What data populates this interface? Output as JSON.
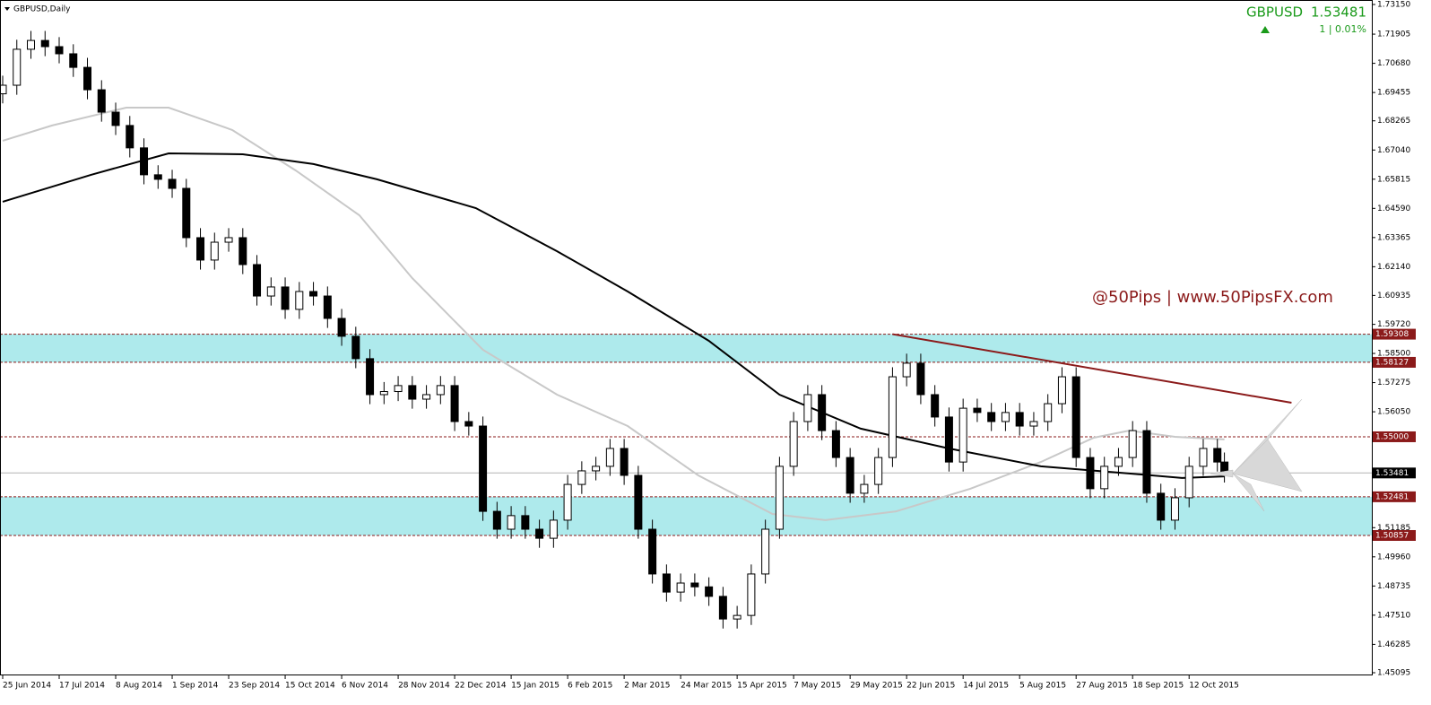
{
  "chart_data": {
    "type": "candlestick",
    "symbol_title": "GBPUSD,Daily",
    "quote_symbol": "GBPUSD",
    "quote_price": 1.53481,
    "quote_change": "1 | 0.01%",
    "watermark": "@50Pips | www.50PipsFX.com",
    "bull_color": "#ffffff",
    "bear_color": "#000000",
    "x": [
      0,
      4,
      8,
      12,
      16,
      20,
      24,
      28,
      32,
      36,
      40,
      44,
      48,
      52,
      56,
      60,
      64,
      68,
      72,
      76,
      80,
      84,
      88,
      92,
      96,
      100,
      104,
      108,
      112,
      116,
      120,
      124,
      128,
      132,
      136,
      140,
      144,
      148,
      152,
      156,
      160,
      164,
      168,
      172,
      176,
      180,
      184,
      188,
      192,
      196,
      200,
      204,
      208,
      212,
      216,
      220,
      224,
      228,
      232,
      236,
      240,
      244,
      248,
      252,
      256,
      260,
      264,
      268,
      272,
      276,
      280,
      284,
      288,
      292,
      296,
      300,
      304,
      308,
      312,
      316,
      320,
      324,
      328,
      332,
      336,
      340,
      344,
      346
    ],
    "open": [
      1.694,
      1.6976,
      1.7127,
      1.7164,
      1.7138,
      1.7108,
      1.7051,
      1.6957,
      1.6863,
      1.6807,
      1.6713,
      1.66,
      1.6581,
      1.6543,
      1.6336,
      1.6242,
      1.6317,
      1.6336,
      1.6223,
      1.6091,
      1.6129,
      1.6035,
      1.611,
      1.6091,
      1.5997,
      1.5922,
      1.5828,
      1.5677,
      1.569,
      1.5715,
      1.5658,
      1.5677,
      1.5715,
      1.5564,
      1.5545,
      1.5187,
      1.5112,
      1.5169,
      1.5112,
      1.5074,
      1.515,
      1.53,
      1.5357,
      1.5376,
      1.5451,
      1.5338,
      1.5112,
      1.4924,
      1.4848,
      1.4886,
      1.487,
      1.483,
      1.4735,
      1.475,
      1.4924,
      1.5112,
      1.5376,
      1.5564,
      1.5677,
      1.5526,
      1.5413,
      1.5263,
      1.53,
      1.5413,
      1.5752,
      1.5809,
      1.5677,
      1.5583,
      1.5394,
      1.562,
      1.5602,
      1.5564,
      1.5602,
      1.5545,
      1.5564,
      1.5639,
      1.5752,
      1.5413,
      1.5282,
      1.5376,
      1.5413,
      1.5526,
      1.5263,
      1.515,
      1.5244,
      1.5376,
      1.5451,
      1.5394
    ],
    "high": [
      1.7016,
      1.7167,
      1.7204,
      1.7204,
      1.7178,
      1.7148,
      1.7091,
      1.6997,
      1.6903,
      1.6847,
      1.6753,
      1.664,
      1.6621,
      1.6583,
      1.6376,
      1.6357,
      1.6376,
      1.6376,
      1.6263,
      1.6169,
      1.6169,
      1.615,
      1.615,
      1.6131,
      1.6037,
      1.5962,
      1.5868,
      1.573,
      1.5755,
      1.5755,
      1.5717,
      1.5755,
      1.5755,
      1.5604,
      1.5585,
      1.5227,
      1.5209,
      1.5209,
      1.5152,
      1.519,
      1.534,
      1.5397,
      1.5416,
      1.5491,
      1.5491,
      1.5378,
      1.5152,
      1.4964,
      1.4926,
      1.4926,
      1.491,
      1.487,
      1.479,
      1.4964,
      1.5152,
      1.5416,
      1.5604,
      1.5717,
      1.5717,
      1.5566,
      1.5453,
      1.534,
      1.5453,
      1.5792,
      1.5849,
      1.5849,
      1.5717,
      1.5623,
      1.566,
      1.566,
      1.5642,
      1.5642,
      1.5642,
      1.5604,
      1.5679,
      1.5792,
      1.5792,
      1.5453,
      1.5416,
      1.5453,
      1.5566,
      1.5566,
      1.5303,
      1.5284,
      1.5416,
      1.5491,
      1.5491,
      1.5434
    ],
    "low": [
      1.69,
      1.6936,
      1.7087,
      1.7098,
      1.7068,
      1.7011,
      1.6917,
      1.6823,
      1.6767,
      1.6673,
      1.656,
      1.6541,
      1.6503,
      1.6296,
      1.6202,
      1.6202,
      1.6277,
      1.6183,
      1.6051,
      1.6051,
      1.5995,
      1.5995,
      1.6051,
      1.5957,
      1.5882,
      1.5788,
      1.5637,
      1.5637,
      1.565,
      1.5618,
      1.5618,
      1.5637,
      1.5524,
      1.5505,
      1.5147,
      1.5072,
      1.5072,
      1.5072,
      1.5034,
      1.5034,
      1.511,
      1.526,
      1.5317,
      1.5336,
      1.5298,
      1.5072,
      1.4884,
      1.4808,
      1.4808,
      1.483,
      1.479,
      1.4695,
      1.4695,
      1.471,
      1.4884,
      1.5072,
      1.5336,
      1.5524,
      1.5486,
      1.5373,
      1.5223,
      1.5223,
      1.526,
      1.5373,
      1.5712,
      1.5637,
      1.5543,
      1.5354,
      1.5354,
      1.5562,
      1.5524,
      1.5524,
      1.5505,
      1.5505,
      1.5524,
      1.5599,
      1.5373,
      1.5242,
      1.5242,
      1.5336,
      1.5373,
      1.5223,
      1.511,
      1.511,
      1.5204,
      1.5336,
      1.5354,
      1.5308
    ],
    "close": [
      1.6976,
      1.7127,
      1.7164,
      1.7138,
      1.7108,
      1.7051,
      1.6957,
      1.6863,
      1.6807,
      1.6713,
      1.66,
      1.6581,
      1.6543,
      1.6336,
      1.6242,
      1.6317,
      1.6336,
      1.6223,
      1.6091,
      1.6129,
      1.6035,
      1.611,
      1.6091,
      1.5997,
      1.5922,
      1.5828,
      1.5677,
      1.569,
      1.5715,
      1.5658,
      1.5677,
      1.5715,
      1.5564,
      1.5545,
      1.5187,
      1.5112,
      1.5169,
      1.5112,
      1.5074,
      1.515,
      1.53,
      1.5357,
      1.5376,
      1.5451,
      1.5338,
      1.5112,
      1.4924,
      1.4848,
      1.4886,
      1.487,
      1.483,
      1.4735,
      1.475,
      1.4924,
      1.5112,
      1.5376,
      1.5564,
      1.5677,
      1.5526,
      1.5413,
      1.5263,
      1.53,
      1.5413,
      1.5752,
      1.5809,
      1.5677,
      1.5583,
      1.5394,
      1.562,
      1.5602,
      1.5564,
      1.5602,
      1.5545,
      1.5564,
      1.5639,
      1.5752,
      1.5413,
      1.5282,
      1.5376,
      1.5413,
      1.5526,
      1.5263,
      1.515,
      1.5244,
      1.5376,
      1.5451,
      1.5394,
      1.53481
    ],
    "moving_averages": [
      {
        "color": "#c8c8c8",
        "x": [
          0,
          14,
          35,
          47,
          65,
          83,
          101,
          116,
          136,
          157,
          177,
          197,
          218,
          233,
          253,
          274,
          294,
          309,
          319,
          332,
          346
        ],
        "values": [
          1.6743,
          1.6807,
          1.6882,
          1.6882,
          1.6788,
          1.6618,
          1.643,
          1.6166,
          1.5865,
          1.5677,
          1.5545,
          1.5338,
          1.5176,
          1.515,
          1.5187,
          1.5282,
          1.5394,
          1.5496,
          1.5526,
          1.55,
          1.5489
        ]
      },
      {
        "color": "#000000",
        "x": [
          0,
          25,
          47,
          68,
          88,
          106,
          134,
          157,
          177,
          200,
          220,
          243,
          268,
          294,
          319,
          334,
          346
        ],
        "values": [
          1.6487,
          1.66,
          1.669,
          1.6686,
          1.6645,
          1.6581,
          1.646,
          1.6279,
          1.611,
          1.5903,
          1.5677,
          1.5534,
          1.5451,
          1.5376,
          1.5346,
          1.5327,
          1.5334
        ]
      }
    ],
    "trendline": {
      "color": "#8b1a1a",
      "x": [
        252,
        365
      ],
      "values": [
        1.59308,
        1.5643
      ]
    },
    "zone_color": "#aeeaec",
    "zones": [
      [
        1.58127,
        1.59308
      ],
      [
        1.50857,
        1.52481
      ]
    ],
    "level_color": "#8b1a1a",
    "levels": [
      1.59308,
      1.58127,
      {
        "value": 1.55,
        "label": "1.55000"
      },
      1.52481,
      1.50857
    ],
    "current_price": 1.53481,
    "xlim": [
      0,
      388
    ],
    "ylim": [
      1.45095,
      1.7315
    ],
    "xticks": [
      {
        "value": 0,
        "label": "25 Jun 2014"
      },
      {
        "value": 16,
        "label": "17 Jul 2014"
      },
      {
        "value": 32,
        "label": "8 Aug 2014"
      },
      {
        "value": 48,
        "label": "1 Sep 2014"
      },
      {
        "value": 64,
        "label": "23 Sep 2014"
      },
      {
        "value": 80,
        "label": "15 Oct 2014"
      },
      {
        "value": 96,
        "label": "6 Nov 2014"
      },
      {
        "value": 112,
        "label": "28 Nov 2014"
      },
      {
        "value": 128,
        "label": "22 Dec 2014"
      },
      {
        "value": 144,
        "label": "15 Jan 2015"
      },
      {
        "value": 160,
        "label": "6 Feb 2015"
      },
      {
        "value": 176,
        "label": "2 Mar 2015"
      },
      {
        "value": 192,
        "label": "24 Mar 2015"
      },
      {
        "value": 208,
        "label": "15 Apr 2015"
      },
      {
        "value": 224,
        "label": "7 May 2015"
      },
      {
        "value": 240,
        "label": "29 May 2015"
      },
      {
        "value": 256,
        "label": "22 Jun 2015"
      },
      {
        "value": 272,
        "label": "14 Jul 2015"
      },
      {
        "value": 288,
        "label": "5 Aug 2015"
      },
      {
        "value": 304,
        "label": "27 Aug 2015"
      },
      {
        "value": 320,
        "label": "18 Sep 2015"
      },
      {
        "value": 336,
        "label": "12 Oct 2015"
      }
    ],
    "yticks": [
      {
        "value": 1.7315,
        "label": "1.73150"
      },
      1.71905,
      {
        "value": 1.7068,
        "label": "1.70680"
      },
      1.69455,
      1.68265,
      {
        "value": 1.6704,
        "label": "1.67040"
      },
      1.65815,
      {
        "value": 1.6459,
        "label": "1.64590"
      },
      1.63365,
      {
        "value": 1.6214,
        "label": "1.62140"
      },
      1.60935,
      {
        "value": 1.5972,
        "label": "1.59720"
      },
      {
        "value": 1.585,
        "label": "1.58500"
      },
      1.57275,
      {
        "value": 1.5605,
        "label": "1.56050"
      },
      1.51185,
      {
        "value": 1.4996,
        "label": "1.49960"
      },
      1.48735,
      {
        "value": 1.4751,
        "label": "1.47510"
      },
      1.46285,
      1.45095
    ]
  }
}
